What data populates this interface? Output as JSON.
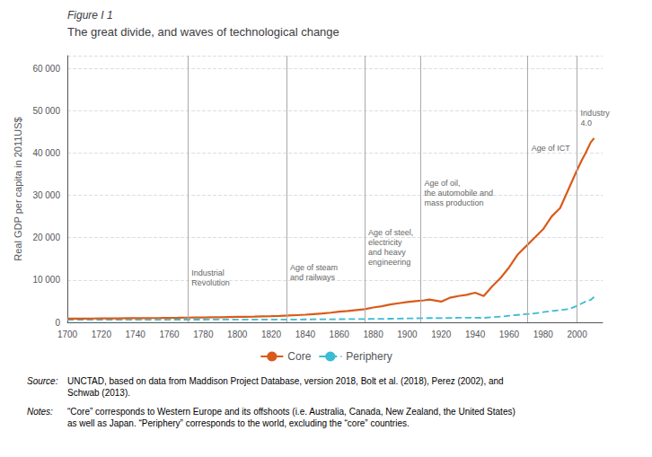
{
  "chart_data": {
    "type": "line",
    "title_label": "Figure I 1",
    "title": "The great divide, and waves of technological change",
    "y_label": "Real GDP per capita in 2011US$",
    "xlim": [
      1700,
      2015
    ],
    "xticks": [
      1700,
      1720,
      1740,
      1760,
      1780,
      1800,
      1820,
      1840,
      1860,
      1880,
      1900,
      1920,
      1940,
      1960,
      1980,
      2000
    ],
    "ylim": [
      0,
      63000
    ],
    "yticks": [
      0,
      {
        "value": 10000,
        "label": "10 000"
      },
      {
        "value": 20000,
        "label": "20 000"
      },
      {
        "value": 30000,
        "label": "30 000"
      },
      {
        "value": 40000,
        "label": "40 000"
      },
      {
        "value": 50000,
        "label": "50 000"
      },
      {
        "value": 60000,
        "label": "60 000"
      }
    ],
    "grid": true,
    "legend": "bottom",
    "x": [
      1700,
      1705,
      1710,
      1715,
      1720,
      1725,
      1730,
      1735,
      1740,
      1745,
      1750,
      1755,
      1760,
      1765,
      1770,
      1775,
      1780,
      1785,
      1790,
      1795,
      1800,
      1805,
      1810,
      1815,
      1820,
      1825,
      1830,
      1835,
      1840,
      1845,
      1850,
      1855,
      1860,
      1865,
      1870,
      1875,
      1880,
      1885,
      1890,
      1895,
      1900,
      1905,
      1910,
      1913,
      1920,
      1925,
      1930,
      1935,
      1940,
      1945,
      1950,
      1955,
      1960,
      1965,
      1970,
      1975,
      1980,
      1985,
      1990,
      1995,
      2000,
      2003,
      2005,
      2008,
      2010
    ],
    "series": [
      {
        "name": "Core",
        "color": "#D95B1B",
        "line_style": "solid",
        "values": [
          870,
          880,
          890,
          900,
          915,
          930,
          945,
          960,
          975,
          990,
          1010,
          1030,
          1055,
          1080,
          1110,
          1140,
          1160,
          1180,
          1200,
          1240,
          1280,
          1310,
          1350,
          1400,
          1450,
          1520,
          1600,
          1700,
          1800,
          1950,
          2100,
          2280,
          2500,
          2680,
          2900,
          3100,
          3500,
          3800,
          4200,
          4500,
          4800,
          5000,
          5200,
          5400,
          4900,
          5800,
          6200,
          6500,
          7000,
          6200,
          8500,
          10500,
          13000,
          16000,
          18000,
          20000,
          22000,
          25000,
          27000,
          31500,
          36000,
          38500,
          40000,
          42500,
          43500
        ]
      },
      {
        "name": "Periphery",
        "color": "#3BBCD4",
        "line_style": "dashed",
        "values": [
          590,
          595,
          600,
          605,
          610,
          612,
          615,
          618,
          620,
          622,
          625,
          628,
          630,
          632,
          635,
          638,
          640,
          643,
          645,
          648,
          655,
          658,
          660,
          662,
          665,
          668,
          672,
          677,
          685,
          695,
          710,
          725,
          745,
          760,
          775,
          790,
          810,
          830,
          850,
          870,
          920,
          955,
          990,
          1010,
          1000,
          1030,
          1070,
          1080,
          1100,
          1050,
          1200,
          1350,
          1550,
          1750,
          1950,
          2100,
          2400,
          2650,
          2900,
          3100,
          3900,
          4500,
          4900,
          5300,
          6000
        ]
      }
    ],
    "vlines": {
      "x": [
        1771,
        1829,
        1875,
        1908,
        1971,
        2000
      ],
      "color": "#AAAAAA"
    },
    "annotations": [
      {
        "x": 1771,
        "y": 8200,
        "label": "Industrial\nRevolution",
        "color": "#666666"
      },
      {
        "x": 1829,
        "y": 9500,
        "label": "Age of steam\nand railways",
        "color": "#666666"
      },
      {
        "x": 1875,
        "y": 13000,
        "label": "Age of steel,\nelectricity\nand heavy\nengineering",
        "color": "#666666"
      },
      {
        "x": 1908,
        "y": 27000,
        "label": "Age of oil,\nthe automobile and\nmass production",
        "color": "#666666"
      },
      {
        "x": 1971,
        "y": 40000,
        "label": "Age of ICT",
        "color": "#666666"
      },
      {
        "x": 2000,
        "y": 46000,
        "label": "Industry\n4.0",
        "color": "#666666"
      }
    ],
    "footer": [
      {
        "label": "Source:",
        "text": "UNCTAD, based on data from Maddison Project Database, version 2018, Bolt et al. (2018), Perez (2002), and\nSchwab (2013)."
      },
      {
        "label": "Notes:",
        "text": "“Core” corresponds to Western Europe and its offshoots (i.e. Australia, Canada, New Zealand, the United States)\nas well as Japan. “Periphery” corresponds to the world, excluding the “core” countries."
      }
    ]
  }
}
